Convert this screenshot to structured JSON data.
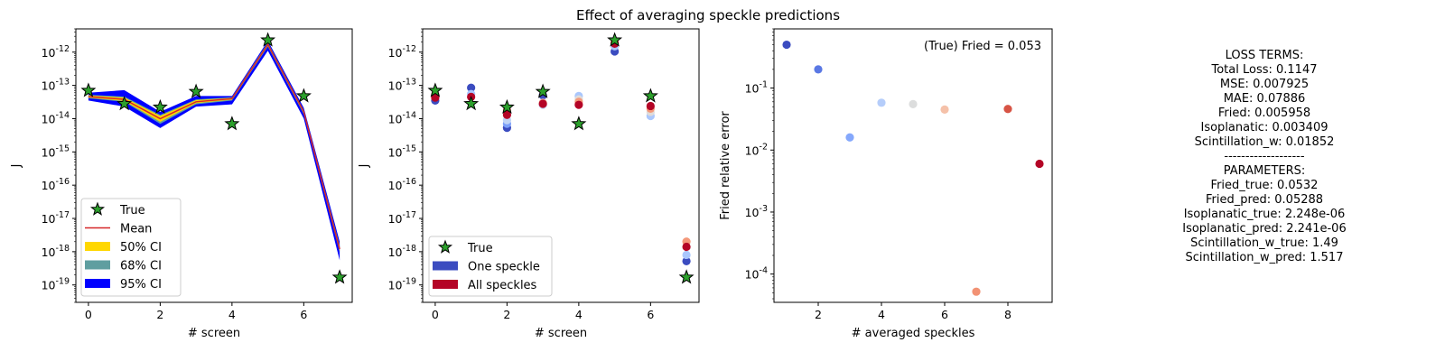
{
  "figure": {
    "title": "Effect of averaging speckle predictions"
  },
  "chart_data": [
    {
      "type": "line",
      "xlabel": "# screen",
      "ylabel": "J",
      "yscale": "log",
      "xlim": [
        -0.35,
        7.35
      ],
      "ylim": [
        3e-20,
        5e-12
      ],
      "xticks": [
        0,
        2,
        4,
        6
      ],
      "yticks": [
        1e-19,
        1e-18,
        1e-17,
        1e-16,
        1e-15,
        1e-14,
        1e-13,
        1e-12
      ],
      "ytick_labels": [
        "10^-19",
        "10^-18",
        "10^-17",
        "10^-16",
        "10^-15",
        "10^-14",
        "10^-13",
        "10^-12"
      ],
      "legend_position": "lower-left",
      "x": [
        0,
        1,
        2,
        3,
        4,
        5,
        6,
        7
      ],
      "true": {
        "name": "True",
        "color": "#2ca02c",
        "values": [
          7e-14,
          2.8e-14,
          2.2e-14,
          6.5e-14,
          7e-15,
          2.3e-12,
          4.8e-14,
          1.7e-19
        ]
      },
      "mean": {
        "name": "Mean",
        "color": "#d62728",
        "values": [
          4.6e-14,
          3.8e-14,
          1e-14,
          3.2e-14,
          4e-14,
          1.7e-12,
          1.6e-14,
          1.2e-18
        ]
      },
      "bands": [
        {
          "name": "95% CI",
          "color": "#0000ff",
          "lower": [
            3.5e-14,
            2.3e-14,
            5.2e-15,
            2.3e-14,
            2.7e-14,
            1.1e-12,
            1e-14,
            5.5e-19
          ],
          "upper": [
            6e-14,
            7.2e-14,
            1.6e-14,
            4.8e-14,
            4.8e-14,
            2.2e-12,
            2.1e-14,
            2e-18
          ]
        },
        {
          "name": "68% CI",
          "color": "#5f9ea0",
          "lower": [
            4.1e-14,
            3.2e-14,
            7e-15,
            2.7e-14,
            3.5e-14,
            1.45e-12,
            1.35e-14,
            9.5e-19
          ],
          "upper": [
            5.2e-14,
            4.6e-14,
            1.3e-14,
            3.8e-14,
            4.4e-14,
            1.95e-12,
            1.8e-14,
            1.55e-18
          ]
        },
        {
          "name": "50% CI",
          "color": "#ffd700",
          "lower": [
            4.3e-14,
            3.4e-14,
            8e-15,
            2.9e-14,
            3.7e-14,
            1.55e-12,
            1.45e-14,
            1.05e-18
          ],
          "upper": [
            5e-14,
            4.3e-14,
            1.2e-14,
            3.6e-14,
            4.2e-14,
            1.85e-12,
            1.7e-14,
            1.4e-18
          ]
        }
      ],
      "legend": [
        "True",
        "Mean",
        "50% CI",
        "68% CI",
        "95% CI"
      ]
    },
    {
      "type": "scatter",
      "xlabel": "# screen",
      "ylabel": "J",
      "yscale": "log",
      "xlim": [
        -0.35,
        7.35
      ],
      "ylim": [
        3e-20,
        5e-12
      ],
      "xticks": [
        0,
        2,
        4,
        6
      ],
      "yticks": [
        1e-19,
        1e-18,
        1e-17,
        1e-16,
        1e-15,
        1e-14,
        1e-13,
        1e-12
      ],
      "ytick_labels": [
        "10^-19",
        "10^-18",
        "10^-17",
        "10^-16",
        "10^-15",
        "10^-14",
        "10^-13",
        "10^-12"
      ],
      "legend_position": "lower-left",
      "true": {
        "name": "True",
        "color": "#2ca02c",
        "x": [
          0,
          1,
          2,
          3,
          4,
          5,
          6,
          7
        ],
        "values": [
          7e-14,
          2.8e-14,
          2.2e-14,
          6.5e-14,
          7e-15,
          2.3e-12,
          4.8e-14,
          1.7e-19
        ]
      },
      "points": [
        {
          "x": 0,
          "y": 3.5e-14,
          "color": "#3b4cc0"
        },
        {
          "x": 0,
          "y": 5.2e-14,
          "color": "#f4987a"
        },
        {
          "x": 0,
          "y": 4.3e-14,
          "color": "#b40426"
        },
        {
          "x": 1,
          "y": 8.5e-14,
          "color": "#3b4cc0"
        },
        {
          "x": 1,
          "y": 5.5e-14,
          "color": "#aac7fd"
        },
        {
          "x": 1,
          "y": 4.5e-14,
          "color": "#b40426"
        },
        {
          "x": 2,
          "y": 5.3e-15,
          "color": "#3b4cc0"
        },
        {
          "x": 2,
          "y": 7e-15,
          "color": "#7b9ff9"
        },
        {
          "x": 2,
          "y": 9e-15,
          "color": "#c0d4f5"
        },
        {
          "x": 2,
          "y": 1.8e-14,
          "color": "#f49a7b"
        },
        {
          "x": 2,
          "y": 1.3e-14,
          "color": "#b40426"
        },
        {
          "x": 3,
          "y": 5e-14,
          "color": "#3b4cc0"
        },
        {
          "x": 3,
          "y": 3e-14,
          "color": "#f7b89c"
        },
        {
          "x": 3,
          "y": 2.6e-14,
          "color": "#c0d4f5"
        },
        {
          "x": 3,
          "y": 2.8e-14,
          "color": "#b40426"
        },
        {
          "x": 4,
          "y": 4.8e-14,
          "color": "#aac7fd"
        },
        {
          "x": 4,
          "y": 3.8e-14,
          "color": "#e0dbd8"
        },
        {
          "x": 4,
          "y": 3.2e-14,
          "color": "#f4987a"
        },
        {
          "x": 4,
          "y": 2.6e-14,
          "color": "#b40426"
        },
        {
          "x": 5,
          "y": 1.05e-12,
          "color": "#3b4cc0"
        },
        {
          "x": 5,
          "y": 1.5e-12,
          "color": "#aac7fd"
        },
        {
          "x": 5,
          "y": 2e-12,
          "color": "#f4987a"
        },
        {
          "x": 5,
          "y": 1.8e-12,
          "color": "#b40426"
        },
        {
          "x": 6,
          "y": 1.2e-14,
          "color": "#aac7fd"
        },
        {
          "x": 6,
          "y": 1.6e-14,
          "color": "#e0dbd8"
        },
        {
          "x": 6,
          "y": 2e-14,
          "color": "#f4987a"
        },
        {
          "x": 6,
          "y": 2.4e-14,
          "color": "#b40426"
        },
        {
          "x": 7,
          "y": 5.2e-19,
          "color": "#3b4cc0"
        },
        {
          "x": 7,
          "y": 8e-19,
          "color": "#aac7fd"
        },
        {
          "x": 7,
          "y": 2e-18,
          "color": "#f4987a"
        },
        {
          "x": 7,
          "y": 1.4e-18,
          "color": "#b40426"
        }
      ],
      "legend": [
        {
          "name": "True",
          "color": "#2ca02c"
        },
        {
          "name": "One speckle",
          "color": "#3b4cc0"
        },
        {
          "name": "All speckles",
          "color": "#b40426"
        }
      ]
    },
    {
      "type": "scatter",
      "xlabel": "# averaged speckles",
      "ylabel": "Fried relative error",
      "yscale": "log",
      "xlim": [
        0.6,
        9.4
      ],
      "ylim": [
        3.5e-05,
        0.9
      ],
      "xticks": [
        2,
        4,
        6,
        8
      ],
      "yticks": [
        0.0001,
        0.001,
        0.01,
        0.1
      ],
      "ytick_labels": [
        "10^-4",
        "10^-3",
        "10^-2",
        "10^-1"
      ],
      "annotation": "(True) Fried = 0.053",
      "points": [
        {
          "x": 1,
          "y": 0.5,
          "color": "#3b4cc0"
        },
        {
          "x": 2,
          "y": 0.2,
          "color": "#5a78e4"
        },
        {
          "x": 3,
          "y": 0.016,
          "color": "#85a8fc"
        },
        {
          "x": 4,
          "y": 0.058,
          "color": "#b5cdfa"
        },
        {
          "x": 5,
          "y": 0.055,
          "color": "#dcdddd"
        },
        {
          "x": 6,
          "y": 0.045,
          "color": "#f5c1a9"
        },
        {
          "x": 7,
          "y": 5.2e-05,
          "color": "#f29274"
        },
        {
          "x": 8,
          "y": 0.046,
          "color": "#d75445"
        },
        {
          "x": 9,
          "y": 0.006,
          "color": "#b40426"
        }
      ]
    }
  ],
  "loss_panel": {
    "lines": [
      "LOSS TERMS:",
      "Total Loss: 0.1147",
      "MSE: 0.007925",
      "MAE: 0.07886",
      "Fried: 0.005958",
      "Isoplanatic: 0.003409",
      "Scintillation_w: 0.01852",
      "-------------------",
      "PARAMETERS:",
      "Fried_true: 0.0532",
      "Fried_pred: 0.05288",
      "Isoplanatic_true: 2.248e-06",
      "Isoplanatic_pred: 2.241e-06",
      "Scintillation_w_true: 1.49",
      "Scintillation_w_pred: 1.517"
    ]
  }
}
